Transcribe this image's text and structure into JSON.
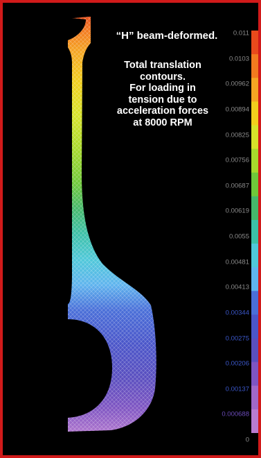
{
  "caption": {
    "title": "“H” beam-deformed.",
    "lines": [
      "Total translation",
      "contours.",
      "For loading in",
      "tension due to",
      "acceleration forces",
      "at 8000 RPM"
    ]
  },
  "legend": {
    "values": [
      "0.011",
      "0.0103",
      "0.00962",
      "0.00894",
      "0.00825",
      "0.00756",
      "0.00687",
      "0.00619",
      "0.0055",
      "0.00481",
      "0.00413",
      "0.00344",
      "0.00275",
      "0.00206",
      "0.00137",
      "0.000688",
      "0"
    ],
    "colors": [
      "#e84a1c",
      "#f27a1f",
      "#f5a623",
      "#f2cf1d",
      "#d7e32a",
      "#a8d92c",
      "#6fc83a",
      "#45b86b",
      "#3cc0a8",
      "#4fc8d9",
      "#5fb4ee",
      "#4a6fd8",
      "#4b56c9",
      "#5a4fbf",
      "#7e55c2",
      "#a068c8",
      "#b87cd0"
    ],
    "label_colors": [
      "#8a8a8a",
      "#8a8a8a",
      "#8a8a8a",
      "#8a8a8a",
      "#8a8a8a",
      "#8a8a8a",
      "#8a8a8a",
      "#8a8a8a",
      "#8a8a8a",
      "#8a8a8a",
      "#8a8a8a",
      "#3b57c9",
      "#3b57c9",
      "#3b57c9",
      "#3b57c9",
      "#6b4bb8",
      "#8a8a8a"
    ]
  },
  "colors": {
    "frame": "#d11a1a",
    "background": "#000000",
    "caption_text": "#ffffff"
  }
}
